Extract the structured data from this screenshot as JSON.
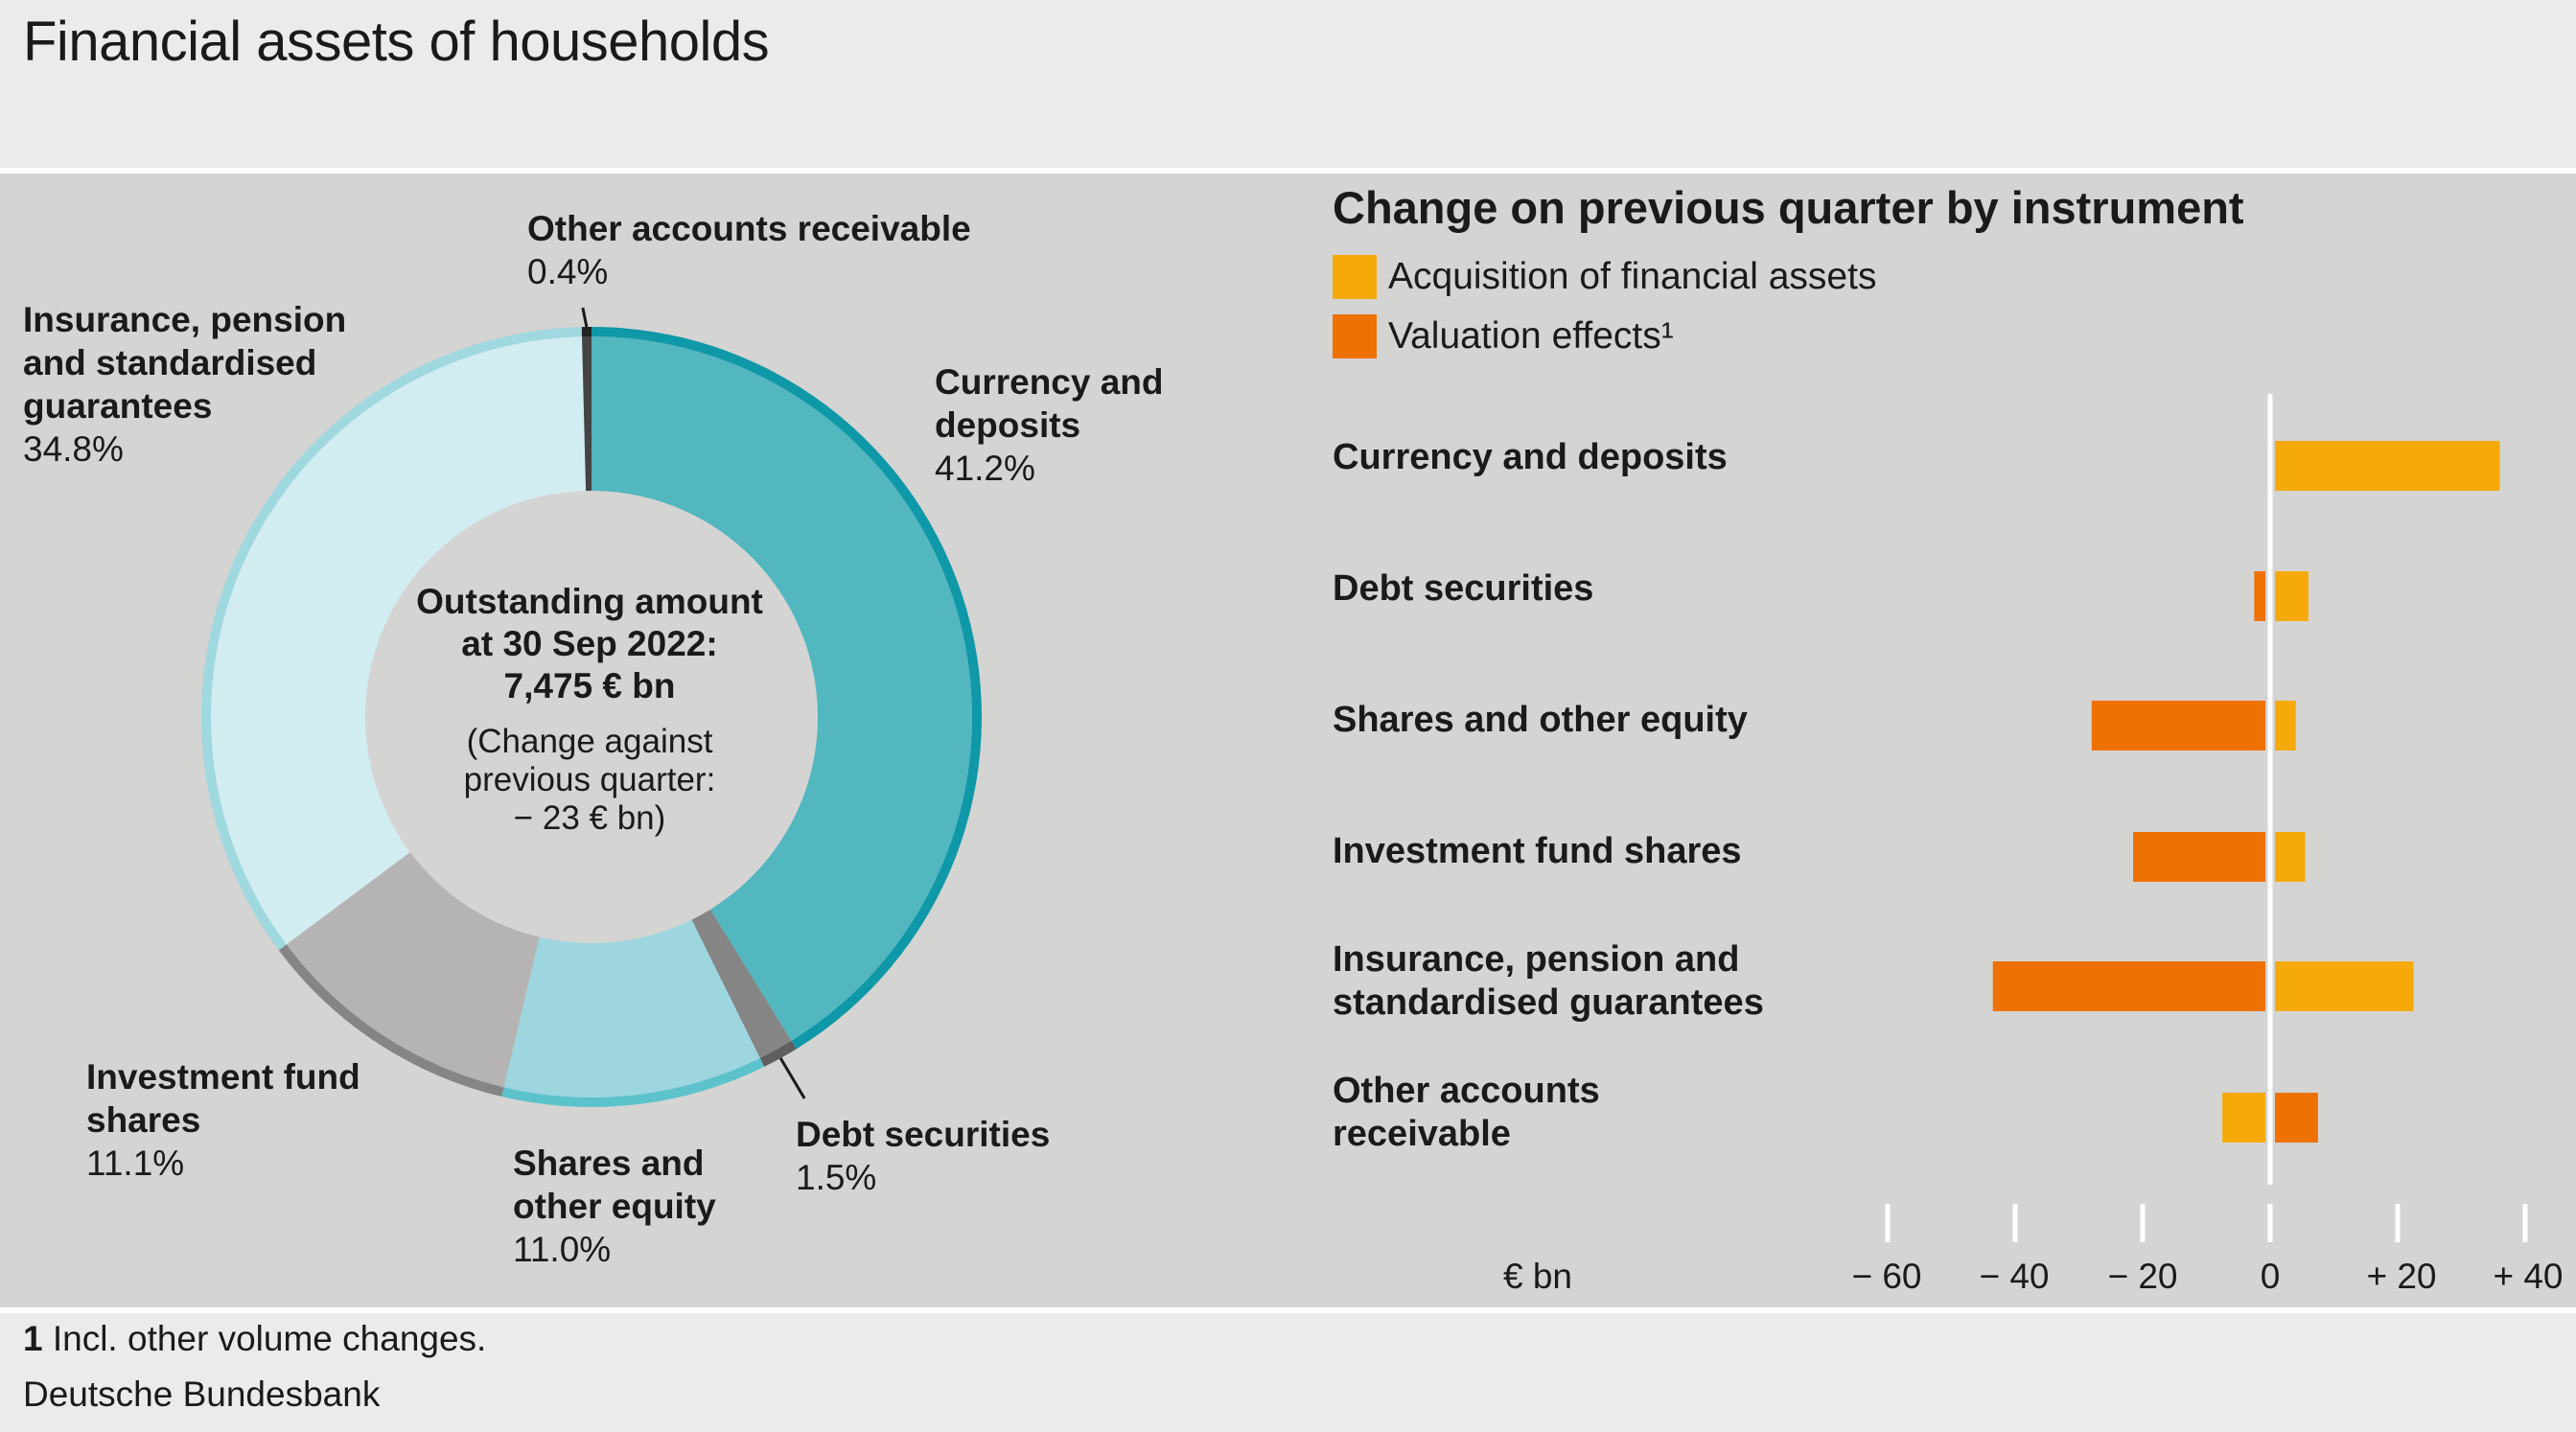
{
  "title": "Financial assets of households",
  "donut": {
    "center_line1": "Outstanding amount",
    "center_line2": "at 30 Sep 2022:",
    "center_line3": "7,475 € bn",
    "center_note1": "(Change against",
    "center_note2": "previous quarter:",
    "center_note3": "− 23 € bn)",
    "segments": [
      {
        "name": "Currency and deposits",
        "label_l1": "Currency and",
        "label_l2": "deposits",
        "value_text": "41.2%",
        "value": 41.2,
        "fill": "#52b7bf",
        "rim": "#0f98a7"
      },
      {
        "name": "Debt securities",
        "label_l1": "Debt securities",
        "value_text": "1.5%",
        "value": 1.5,
        "fill": "#858585",
        "rim": "#5f5f5f"
      },
      {
        "name": "Shares and other equity",
        "label_l1": "Shares and",
        "label_l2": "other equity",
        "value_text": "11.0%",
        "value": 11.0,
        "fill": "#9dd6df",
        "rim": "#5cc2cc"
      },
      {
        "name": "Investment fund shares",
        "label_l1": "Investment fund",
        "label_l2": "shares",
        "value_text": "11.1%",
        "value": 11.1,
        "fill": "#b5b4b2",
        "rim": "#858585"
      },
      {
        "name": "Insurance, pension and standardised guarantees",
        "label_l1": "Insurance, pension",
        "label_l2": "and standardised",
        "label_l3": "guarantees",
        "value_text": "34.8%",
        "value": 34.8,
        "fill": "#d2edf1",
        "rim": "#a0d8e0"
      },
      {
        "name": "Other accounts receivable",
        "label_l1": "Other accounts receivable",
        "value_text": "0.4%",
        "value": 0.4,
        "fill": "#444444",
        "rim": "#222222"
      }
    ]
  },
  "bar_panel": {
    "title": "Change on previous quarter by instrument",
    "legend": [
      {
        "label": "Acquisition of financial assets",
        "color": "#f5aa0a"
      },
      {
        "label": "Valuation effects¹",
        "color": "#ee7203"
      }
    ],
    "unit": "€ bn",
    "tick_labels": [
      "− 60",
      "− 40",
      "− 20",
      "0",
      "+ 20",
      "+ 40"
    ]
  },
  "chart_data": [
    {
      "type": "pie",
      "title": "Financial assets of households",
      "categories": [
        "Currency and deposits",
        "Debt securities",
        "Shares and other equity",
        "Investment fund shares",
        "Insurance, pension and standardised guarantees",
        "Other accounts receivable"
      ],
      "values": [
        41.2,
        1.5,
        11.0,
        11.1,
        34.8,
        0.4
      ]
    },
    {
      "type": "bar",
      "orientation": "horizontal",
      "title": "Change on previous quarter by instrument",
      "categories": [
        "Currency and deposits",
        "Debt securities",
        "Shares and other equity",
        "Investment fund shares",
        "Insurance, pension and\nstandardised guarantees",
        "Other accounts\nreceivable"
      ],
      "series": [
        {
          "name": "Acquisition of financial assets",
          "values": [
            36,
            6,
            4,
            5.5,
            22.5,
            -7.5
          ]
        },
        {
          "name": "Valuation effects¹",
          "values": [
            0,
            -2.5,
            -28,
            -21.5,
            -43.5,
            7.5
          ]
        }
      ],
      "xlabel": "€ bn",
      "xlim": [
        -60,
        40
      ],
      "xticks": [
        -60,
        -40,
        -20,
        0,
        20,
        40
      ],
      "legend": "top-left"
    }
  ],
  "footnote_num": "1",
  "footnote_text": " Incl. other volume changes.",
  "source": "Deutsche Bundesbank"
}
